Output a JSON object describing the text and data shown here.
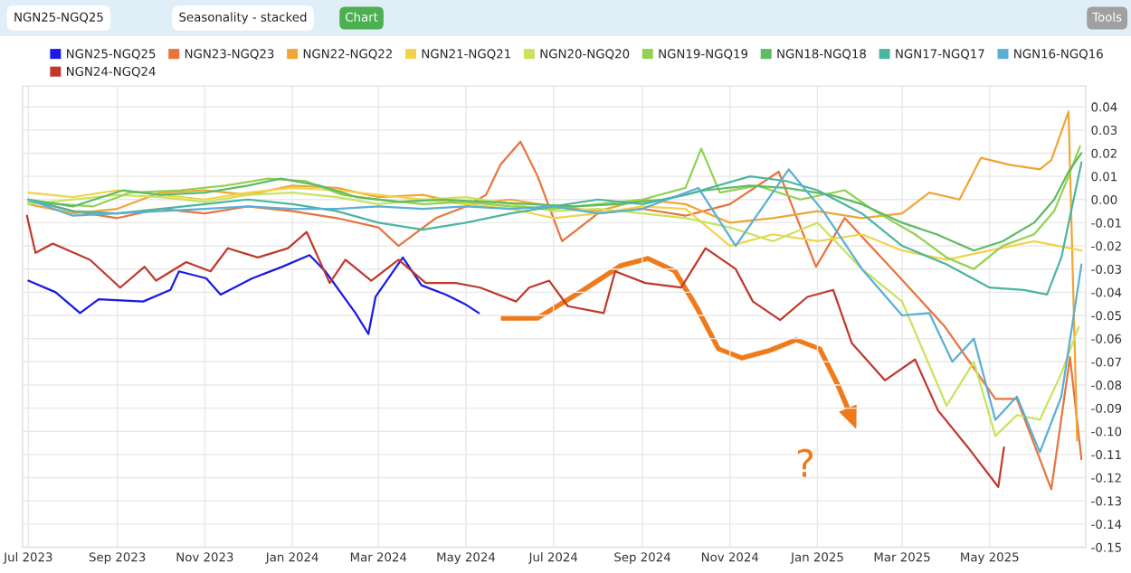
{
  "chart_data": {
    "type": "line",
    "annotations": [
      "NGN25-NGQ25",
      "Seasonality - stacked",
      "Chart",
      "Tools",
      "?"
    ],
    "xlim": [
      "2023-06-27",
      "2025-07-07"
    ],
    "xticks": [
      {
        "value": "2023-07-01",
        "label": "Jul 2023"
      },
      {
        "value": "2023-09-01",
        "label": "Sep 2023"
      },
      {
        "value": "2023-11-01",
        "label": "Nov 2023"
      },
      {
        "value": "2024-01-01",
        "label": "Jan 2024"
      },
      {
        "value": "2024-03-01",
        "label": "Mar 2024"
      },
      {
        "value": "2024-05-01",
        "label": "May 2024"
      },
      {
        "value": "2024-07-01",
        "label": "Jul 2024"
      },
      {
        "value": "2024-09-01",
        "label": "Sep 2024"
      },
      {
        "value": "2024-11-01",
        "label": "Nov 2024"
      },
      {
        "value": "2025-01-01",
        "label": "Jan 2025"
      },
      {
        "value": "2025-03-01",
        "label": "Mar 2025"
      },
      {
        "value": "2025-05-01",
        "label": "May 2025"
      }
    ],
    "ylim": [
      -0.15,
      0.049
    ],
    "yticks": [
      0.04,
      0.03,
      0.02,
      0.01,
      {
        "value": 0,
        "label": "0.00"
      },
      -0.01,
      -0.02,
      -0.03,
      -0.04,
      -0.05,
      -0.06,
      -0.07,
      -0.08,
      -0.09,
      {
        "value": -0.1,
        "label": "-0.10"
      },
      -0.11,
      -0.12,
      -0.13,
      -0.14,
      -0.15
    ],
    "grid": true,
    "legend": "top",
    "marker": "none",
    "line_style": "solid",
    "series": [
      {
        "name": "NGN25-NGQ25",
        "color": "#1a1ae6",
        "x": [
          "2023-07-01",
          "2023-07-20",
          "2023-08-06",
          "2023-08-19",
          "2023-09-19",
          "2023-10-08",
          "2023-10-14",
          "2023-11-02",
          "2023-11-12",
          "2023-12-04",
          "2023-12-25",
          "2024-01-13",
          "2024-01-24",
          "2024-02-14",
          "2024-02-23",
          "2024-02-28",
          "2024-03-18",
          "2024-03-31",
          "2024-04-17",
          "2024-04-30",
          "2024-05-10"
        ],
        "values": [
          -0.035,
          -0.04,
          -0.049,
          -0.043,
          -0.044,
          -0.039,
          -0.031,
          -0.034,
          -0.041,
          -0.034,
          -0.029,
          -0.024,
          -0.031,
          -0.049,
          -0.058,
          -0.042,
          -0.025,
          -0.037,
          -0.041,
          -0.045,
          -0.049
        ]
      },
      {
        "name": "NGN24-NGQ24",
        "color": "#c0392b",
        "x": [
          "2023-06-30",
          "2023-07-06",
          "2023-07-18",
          "2023-08-13",
          "2023-09-03",
          "2023-09-20",
          "2023-09-28",
          "2023-10-19",
          "2023-11-05",
          "2023-11-17",
          "2023-12-08",
          "2023-12-29",
          "2024-01-11",
          "2024-01-27",
          "2024-02-07",
          "2024-02-25",
          "2024-03-15",
          "2024-04-03",
          "2024-04-24",
          "2024-05-11",
          "2024-06-05",
          "2024-06-14",
          "2024-06-28",
          "2024-07-11",
          "2024-08-05",
          "2024-08-13",
          "2024-09-03",
          "2024-09-28",
          "2024-10-15",
          "2024-11-05",
          "2024-11-17",
          "2024-12-06",
          "2024-12-25",
          "2025-01-12",
          "2025-01-25",
          "2025-02-17",
          "2025-03-10",
          "2025-03-26",
          "2025-04-16",
          "2025-05-07",
          "2025-05-11"
        ],
        "values": [
          -0.007,
          -0.023,
          -0.019,
          -0.026,
          -0.038,
          -0.029,
          -0.035,
          -0.027,
          -0.031,
          -0.021,
          -0.025,
          -0.021,
          -0.014,
          -0.036,
          -0.026,
          -0.035,
          -0.026,
          -0.036,
          -0.036,
          -0.038,
          -0.044,
          -0.038,
          -0.035,
          -0.046,
          -0.049,
          -0.031,
          -0.036,
          -0.038,
          -0.021,
          -0.03,
          -0.044,
          -0.052,
          -0.042,
          -0.039,
          -0.062,
          -0.078,
          -0.069,
          -0.091,
          -0.107,
          -0.124,
          -0.107
        ]
      },
      {
        "name": "NGN23-NGQ23",
        "color": "#e8743b",
        "x": [
          "2023-07-01",
          "2023-08-01",
          "2023-09-01",
          "2023-10-01",
          "2023-11-01",
          "2023-12-01",
          "2024-01-01",
          "2024-02-01",
          "2024-03-01",
          "2024-03-15",
          "2024-04-10",
          "2024-05-01",
          "2024-05-15",
          "2024-05-25",
          "2024-06-08",
          "2024-06-20",
          "2024-07-07",
          "2024-08-01",
          "2024-09-01",
          "2024-10-01",
          "2024-11-01",
          "2024-12-05",
          "2024-12-31",
          "2025-01-20",
          "2025-02-28",
          "2025-03-31",
          "2025-05-05",
          "2025-05-20",
          "2025-06-13",
          "2025-06-26",
          "2025-07-04"
        ],
        "values": [
          0.0,
          -0.005,
          -0.008,
          -0.004,
          -0.006,
          -0.003,
          -0.005,
          -0.008,
          -0.012,
          -0.02,
          -0.008,
          -0.003,
          0.002,
          0.015,
          0.025,
          0.01,
          -0.018,
          -0.006,
          -0.004,
          -0.007,
          -0.002,
          0.012,
          -0.029,
          -0.008,
          -0.034,
          -0.055,
          -0.086,
          -0.086,
          -0.125,
          -0.068,
          -0.112
        ]
      },
      {
        "name": "NGN22-NGQ22",
        "color": "#f0a535",
        "x": [
          "2023-07-01",
          "2023-08-01",
          "2023-09-01",
          "2023-10-01",
          "2023-11-01",
          "2023-12-01",
          "2024-01-01",
          "2024-02-01",
          "2024-03-01",
          "2024-04-01",
          "2024-05-01",
          "2024-06-01",
          "2024-07-01",
          "2024-08-01",
          "2024-09-01",
          "2024-10-01",
          "2024-11-01",
          "2024-12-01",
          "2025-01-01",
          "2025-02-01",
          "2025-03-01",
          "2025-03-20",
          "2025-04-10",
          "2025-04-25",
          "2025-05-15",
          "2025-06-05",
          "2025-06-13",
          "2025-06-25",
          "2025-07-01"
        ],
        "values": [
          -0.002,
          -0.006,
          -0.004,
          0.003,
          0.004,
          0.002,
          0.006,
          0.005,
          0.001,
          0.002,
          -0.002,
          0.0,
          -0.003,
          -0.005,
          0.0,
          -0.002,
          -0.01,
          -0.008,
          -0.005,
          -0.008,
          -0.006,
          0.003,
          0.0,
          0.018,
          0.015,
          0.013,
          0.017,
          0.038,
          -0.104
        ]
      },
      {
        "name": "NGN21-NGQ21",
        "color": "#f3d24a",
        "x": [
          "2023-07-01",
          "2023-08-01",
          "2023-09-01",
          "2023-10-01",
          "2023-11-01",
          "2023-12-01",
          "2024-01-01",
          "2024-02-01",
          "2024-03-01",
          "2024-04-01",
          "2024-05-01",
          "2024-06-01",
          "2024-07-01",
          "2024-08-01",
          "2024-09-01",
          "2024-10-01",
          "2024-11-01",
          "2024-12-01",
          "2025-01-01",
          "2025-02-01",
          "2025-03-01",
          "2025-04-01",
          "2025-05-01",
          "2025-06-01",
          "2025-07-04"
        ],
        "values": [
          0.003,
          0.001,
          0.004,
          0.002,
          0.0,
          0.003,
          0.005,
          0.004,
          0.002,
          0.0,
          -0.002,
          -0.004,
          -0.008,
          -0.006,
          -0.003,
          -0.004,
          -0.02,
          -0.015,
          -0.018,
          -0.015,
          -0.022,
          -0.026,
          -0.022,
          -0.018,
          -0.022
        ]
      },
      {
        "name": "NGN20-NGQ20",
        "color": "#c8e35c",
        "x": [
          "2023-07-01",
          "2023-08-01",
          "2023-09-01",
          "2023-10-01",
          "2023-11-01",
          "2023-12-01",
          "2024-01-01",
          "2024-02-01",
          "2024-03-01",
          "2024-04-01",
          "2024-05-01",
          "2024-06-01",
          "2024-07-01",
          "2024-08-01",
          "2024-09-01",
          "2024-10-01",
          "2024-11-01",
          "2024-12-01",
          "2025-01-01",
          "2025-02-01",
          "2025-03-01",
          "2025-04-01",
          "2025-04-20",
          "2025-05-05",
          "2025-05-20",
          "2025-06-05",
          "2025-06-20",
          "2025-07-02"
        ],
        "values": [
          -0.002,
          0.0,
          0.002,
          0.001,
          -0.001,
          0.002,
          0.003,
          0.001,
          -0.002,
          0.0,
          0.001,
          -0.002,
          -0.005,
          -0.004,
          -0.006,
          -0.008,
          -0.012,
          -0.018,
          -0.01,
          -0.03,
          -0.044,
          -0.089,
          -0.07,
          -0.102,
          -0.093,
          -0.095,
          -0.075,
          -0.055
        ]
      },
      {
        "name": "NGN19-NGQ19",
        "color": "#93d152",
        "x": [
          "2023-07-01",
          "2023-08-15",
          "2023-09-10",
          "2023-10-15",
          "2023-11-15",
          "2023-12-15",
          "2024-01-10",
          "2024-02-05",
          "2024-03-01",
          "2024-04-01",
          "2024-05-01",
          "2024-06-01",
          "2024-07-01",
          "2024-08-01",
          "2024-09-01",
          "2024-10-01",
          "2024-10-12",
          "2024-10-25",
          "2024-11-20",
          "2024-12-20",
          "2025-01-20",
          "2025-02-10",
          "2025-03-10",
          "2025-04-01",
          "2025-04-20",
          "2025-05-10",
          "2025-06-01",
          "2025-06-15",
          "2025-06-25",
          "2025-07-03"
        ],
        "values": [
          -0.001,
          -0.003,
          0.003,
          0.004,
          0.006,
          0.009,
          0.008,
          0.002,
          0.0,
          -0.002,
          -0.001,
          -0.003,
          -0.004,
          -0.002,
          0.0,
          0.005,
          0.022,
          0.003,
          0.006,
          0.0,
          0.004,
          -0.005,
          -0.015,
          -0.025,
          -0.03,
          -0.02,
          -0.015,
          -0.005,
          0.01,
          0.023
        ]
      },
      {
        "name": "NGN18-NGQ18",
        "color": "#5dbb63",
        "x": [
          "2023-07-01",
          "2023-08-01",
          "2023-09-05",
          "2023-10-01",
          "2023-11-01",
          "2023-12-01",
          "2023-12-24",
          "2024-01-20",
          "2024-02-15",
          "2024-03-15",
          "2024-04-15",
          "2024-05-15",
          "2024-06-15",
          "2024-07-15",
          "2024-08-15",
          "2024-09-15",
          "2024-10-15",
          "2024-11-15",
          "2024-12-10",
          "2025-01-10",
          "2025-02-01",
          "2025-03-01",
          "2025-03-25",
          "2025-04-20",
          "2025-05-10",
          "2025-06-01",
          "2025-06-15",
          "2025-06-25",
          "2025-07-04"
        ],
        "values": [
          0.0,
          -0.003,
          0.004,
          0.002,
          0.003,
          0.006,
          0.009,
          0.006,
          0.001,
          -0.001,
          0.0,
          -0.001,
          -0.002,
          -0.003,
          -0.002,
          0.0,
          0.004,
          0.006,
          0.005,
          0.002,
          -0.002,
          -0.01,
          -0.015,
          -0.022,
          -0.018,
          -0.01,
          0.0,
          0.012,
          0.02
        ]
      },
      {
        "name": "NGN17-NGQ17",
        "color": "#4cb5a0",
        "x": [
          "2023-07-01",
          "2023-08-01",
          "2023-09-01",
          "2023-10-01",
          "2023-11-01",
          "2023-12-01",
          "2024-01-01",
          "2024-02-01",
          "2024-03-01",
          "2024-04-01",
          "2024-05-01",
          "2024-06-01",
          "2024-07-01",
          "2024-08-01",
          "2024-09-01",
          "2024-10-01",
          "2024-11-15",
          "2024-12-10",
          "2025-01-01",
          "2025-02-01",
          "2025-03-01",
          "2025-04-01",
          "2025-05-01",
          "2025-05-25",
          "2025-06-10",
          "2025-06-20",
          "2025-07-04"
        ],
        "values": [
          0.0,
          -0.005,
          -0.006,
          -0.004,
          -0.002,
          0.0,
          -0.002,
          -0.005,
          -0.01,
          -0.013,
          -0.01,
          -0.006,
          -0.003,
          0.0,
          -0.002,
          0.002,
          0.01,
          0.008,
          0.004,
          -0.006,
          -0.02,
          -0.028,
          -0.038,
          -0.039,
          -0.041,
          -0.025,
          0.016
        ]
      },
      {
        "name": "NGN16-NGQ16",
        "color": "#5aafd4",
        "x": [
          "2023-07-01",
          "2023-08-01",
          "2023-09-01",
          "2023-10-01",
          "2023-11-01",
          "2023-12-01",
          "2024-01-01",
          "2024-02-01",
          "2024-03-01",
          "2024-04-01",
          "2024-05-01",
          "2024-06-01",
          "2024-07-01",
          "2024-08-01",
          "2024-09-01",
          "2024-10-10",
          "2024-11-05",
          "2024-12-12",
          "2025-01-05",
          "2025-02-01",
          "2025-03-01",
          "2025-03-20",
          "2025-04-05",
          "2025-04-20",
          "2025-05-05",
          "2025-05-20",
          "2025-06-05",
          "2025-06-20",
          "2025-07-04"
        ],
        "values": [
          0.0,
          -0.007,
          -0.006,
          -0.005,
          -0.004,
          -0.003,
          -0.004,
          -0.004,
          -0.003,
          -0.004,
          -0.003,
          -0.004,
          -0.003,
          -0.006,
          -0.004,
          0.005,
          -0.02,
          0.013,
          -0.005,
          -0.03,
          -0.05,
          -0.049,
          -0.07,
          -0.06,
          -0.095,
          -0.085,
          -0.109,
          -0.085,
          -0.028
        ]
      }
    ]
  }
}
